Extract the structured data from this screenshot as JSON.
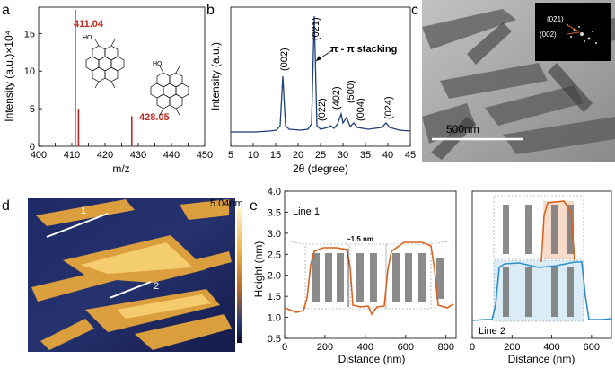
{
  "chart_data": [
    {
      "panel": "a",
      "type": "bar",
      "xlabel": "m/z",
      "ylabel": "Intensity (a.u.)×10⁴",
      "xlim": [
        400,
        450
      ],
      "ylim": [
        0,
        18.5
      ],
      "xticks": [
        400,
        405,
        410,
        415,
        420,
        425,
        430,
        435,
        440,
        445,
        450
      ],
      "yticks": [
        0,
        5,
        10,
        15
      ],
      "x": [
        411.04,
        412.0,
        428.05
      ],
      "values": [
        18.2,
        5.0,
        4.0
      ],
      "annotations": [
        "411.04",
        "428.05"
      ],
      "color": "#c0281e"
    },
    {
      "panel": "b",
      "type": "line",
      "xlabel": "2θ (degree)",
      "ylabel": "Intensity (a.u.)",
      "xlim": [
        5,
        45
      ],
      "xticks": [
        5,
        10,
        15,
        20,
        25,
        30,
        35,
        40,
        45
      ],
      "peaks": [
        "(002)",
        "(021)",
        "(022)",
        "(402)",
        "(500)",
        "(004)",
        "(024)"
      ],
      "annotation": "π - π stacking",
      "color": "#1f3f7a"
    },
    {
      "panel": "e",
      "type": "line",
      "xlabel": "Distance (nm)",
      "ylabel": "Height (nm)",
      "ylim": [
        0.5,
        4.0
      ],
      "yticks": [
        0.5,
        1.0,
        1.5,
        2.0,
        2.5,
        3.0,
        3.5,
        4.0
      ],
      "series": [
        {
          "name": "Line 1",
          "xlim": [
            0,
            850
          ],
          "xticks": [
            0,
            200,
            400,
            600,
            800
          ],
          "color": "#d9631e"
        },
        {
          "name": "Line 2",
          "xlim": [
            0,
            700
          ],
          "xticks": [
            0,
            200,
            400,
            600
          ],
          "color": "#2f8fc8"
        }
      ],
      "annotation": "~1.5 nm"
    }
  ],
  "panels": {
    "a": {
      "label": "a",
      "mol_chem": "HO",
      "peak1": "411.04",
      "peak2": "428.05"
    },
    "b": {
      "label": "b"
    },
    "c": {
      "label": "c",
      "scale_bar": "500nm",
      "saed1": "(021)",
      "saed2": "(002)"
    },
    "d": {
      "label": "d",
      "colorbar_max": "5.04nm",
      "line1": "1",
      "line2": "2"
    },
    "e": {
      "label": "e",
      "line1": "Line 1",
      "line2": "Line 2",
      "step": "~1.5 nm"
    }
  }
}
